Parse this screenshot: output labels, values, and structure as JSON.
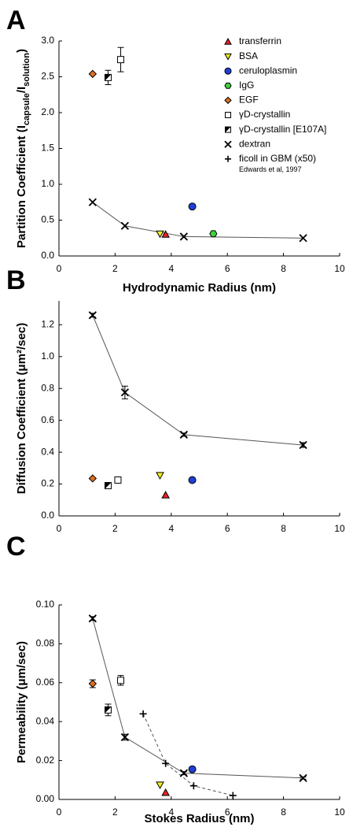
{
  "chart_data": [
    {
      "type": "scatter",
      "panel_label": "A",
      "xlabel": "Hydrodynamic Radius (nm)",
      "ylabel": [
        "Partition Coefficient (I",
        "capsule",
        "/I",
        "solution",
        ")"
      ],
      "xlim": [
        0,
        10
      ],
      "ylim": [
        0,
        3
      ],
      "xticks": [
        0,
        2,
        4,
        6,
        8,
        10
      ],
      "yticks": [
        {
          "value": 0,
          "label": "0.0"
        },
        0.5,
        {
          "value": 1,
          "label": "1.0"
        },
        1.5,
        {
          "value": 2,
          "label": "2.0"
        },
        2.5,
        {
          "value": 3,
          "label": "3.0"
        }
      ],
      "legend": "upper right",
      "annotation": "Edwards et al, 1997",
      "series": [
        {
          "name": "transferrin",
          "color": "#e8202a",
          "marker": "triangle",
          "x": [
            3.8
          ],
          "values": [
            0.3
          ]
        },
        {
          "name": "BSA",
          "color": "#f2ee22",
          "marker": "triangle-down",
          "x": [
            3.6
          ],
          "values": [
            0.31
          ]
        },
        {
          "name": "ceruloplasmin",
          "color": "#1f3fd6",
          "marker": "circle",
          "x": [
            4.75
          ],
          "values": [
            0.69
          ]
        },
        {
          "name": "IgG",
          "color": "#3fd23f",
          "marker": "hexagon",
          "x": [
            5.5
          ],
          "values": [
            0.31
          ]
        },
        {
          "name": "EGF",
          "color": "#e07020",
          "marker": "diamond",
          "x": [
            1.2
          ],
          "values": [
            2.54
          ]
        },
        {
          "name": "γD-crystallin",
          "color": "#ffffff",
          "marker": "square",
          "x": [
            2.2
          ],
          "values": [
            2.74
          ],
          "errors": [
            0.17
          ]
        },
        {
          "name": "γD-crystallin [E107A]",
          "color": "#000000",
          "marker": "half-square",
          "x": [
            1.75
          ],
          "values": [
            2.49
          ],
          "errors": [
            0.1
          ]
        },
        {
          "name": "dextran",
          "color": "#000000",
          "marker": "x",
          "line": "solid",
          "x": [
            1.2,
            2.35,
            4.45,
            8.7
          ],
          "values": [
            0.75,
            0.42,
            0.27,
            0.25
          ]
        },
        {
          "name": "ficoll in GBM (x50)",
          "color": "#000000",
          "marker": "plus",
          "line": "dashed",
          "x": [],
          "values": []
        }
      ]
    },
    {
      "type": "scatter",
      "panel_label": "B",
      "ylabel": "Diffusion Coefficient (μm²/sec)",
      "xlim": [
        0,
        10
      ],
      "ylim": [
        0,
        1.35
      ],
      "xticks": [
        0,
        2,
        4,
        6,
        8,
        10
      ],
      "yticks": [
        {
          "value": 0,
          "label": "0.0"
        },
        0.2,
        0.4,
        0.6,
        0.8,
        {
          "value": 1,
          "label": "1.0"
        },
        1.2
      ],
      "series": [
        {
          "color": "#e8202a",
          "marker": "triangle",
          "x": [
            3.8
          ],
          "values": [
            0.13
          ]
        },
        {
          "color": "#f2ee22",
          "marker": "triangle-down",
          "x": [
            3.6
          ],
          "values": [
            0.255
          ]
        },
        {
          "color": "#1f3fd6",
          "marker": "circle",
          "x": [
            4.75
          ],
          "values": [
            0.225
          ]
        },
        {
          "color": "#e07020",
          "marker": "diamond",
          "x": [
            1.2
          ],
          "values": [
            0.235
          ]
        },
        {
          "color": "#ffffff",
          "marker": "square",
          "x": [
            2.1
          ],
          "values": [
            0.225
          ],
          "errors": [
            0.012
          ]
        },
        {
          "color": "#000000",
          "marker": "half-square",
          "x": [
            1.75
          ],
          "values": [
            0.19
          ],
          "errors": [
            0.012
          ]
        },
        {
          "color": "#000000",
          "marker": "x",
          "line": "solid",
          "x": [
            1.2,
            2.35,
            4.45,
            8.7
          ],
          "values": [
            1.26,
            0.775,
            0.51,
            0.445
          ],
          "errors": [
            0.012,
            0.04,
            0.01,
            0.015
          ]
        }
      ]
    },
    {
      "type": "scatter",
      "panel_label": "C",
      "xlabel": "Stokes Radius (nm)",
      "ylabel": "Permeability (μm/sec)",
      "xlim": [
        0,
        10
      ],
      "ylim": [
        0,
        0.1
      ],
      "xticks": [
        0,
        2,
        4,
        6,
        8,
        10
      ],
      "yticks": [
        {
          "value": 0,
          "label": "0.00"
        },
        {
          "value": 0.02,
          "label": "0.02"
        },
        {
          "value": 0.04,
          "label": "0.04"
        },
        {
          "value": 0.06,
          "label": "0.06"
        },
        {
          "value": 0.08,
          "label": "0.08"
        },
        {
          "value": 0.1,
          "label": "0.10"
        }
      ],
      "series": [
        {
          "color": "#e8202a",
          "marker": "triangle",
          "x": [
            3.8
          ],
          "values": [
            0.0035
          ]
        },
        {
          "color": "#f2ee22",
          "marker": "triangle-down",
          "x": [
            3.6
          ],
          "values": [
            0.0075
          ]
        },
        {
          "color": "#1f3fd6",
          "marker": "circle",
          "x": [
            4.75
          ],
          "values": [
            0.0155
          ]
        },
        {
          "color": "#e07020",
          "marker": "diamond",
          "x": [
            1.2
          ],
          "values": [
            0.0595
          ],
          "errors": [
            0.002
          ]
        },
        {
          "color": "#ffffff",
          "marker": "square",
          "x": [
            2.2
          ],
          "values": [
            0.0612
          ],
          "errors": [
            0.0025
          ]
        },
        {
          "color": "#000000",
          "marker": "half-square",
          "x": [
            1.75
          ],
          "values": [
            0.046
          ],
          "errors": [
            0.003
          ]
        },
        {
          "color": "#000000",
          "marker": "x",
          "line": "solid",
          "x": [
            1.2,
            2.35,
            4.45,
            8.7
          ],
          "values": [
            0.093,
            0.032,
            0.0135,
            0.011
          ],
          "errors": [
            0.001,
            0.0015,
            0.0008,
            0.0006
          ]
        },
        {
          "color": "#000000",
          "marker": "plus",
          "line": "dashed",
          "x": [
            3.0,
            3.8,
            4.8,
            6.2
          ],
          "values": [
            0.044,
            0.0185,
            0.007,
            0.002
          ]
        }
      ]
    }
  ]
}
